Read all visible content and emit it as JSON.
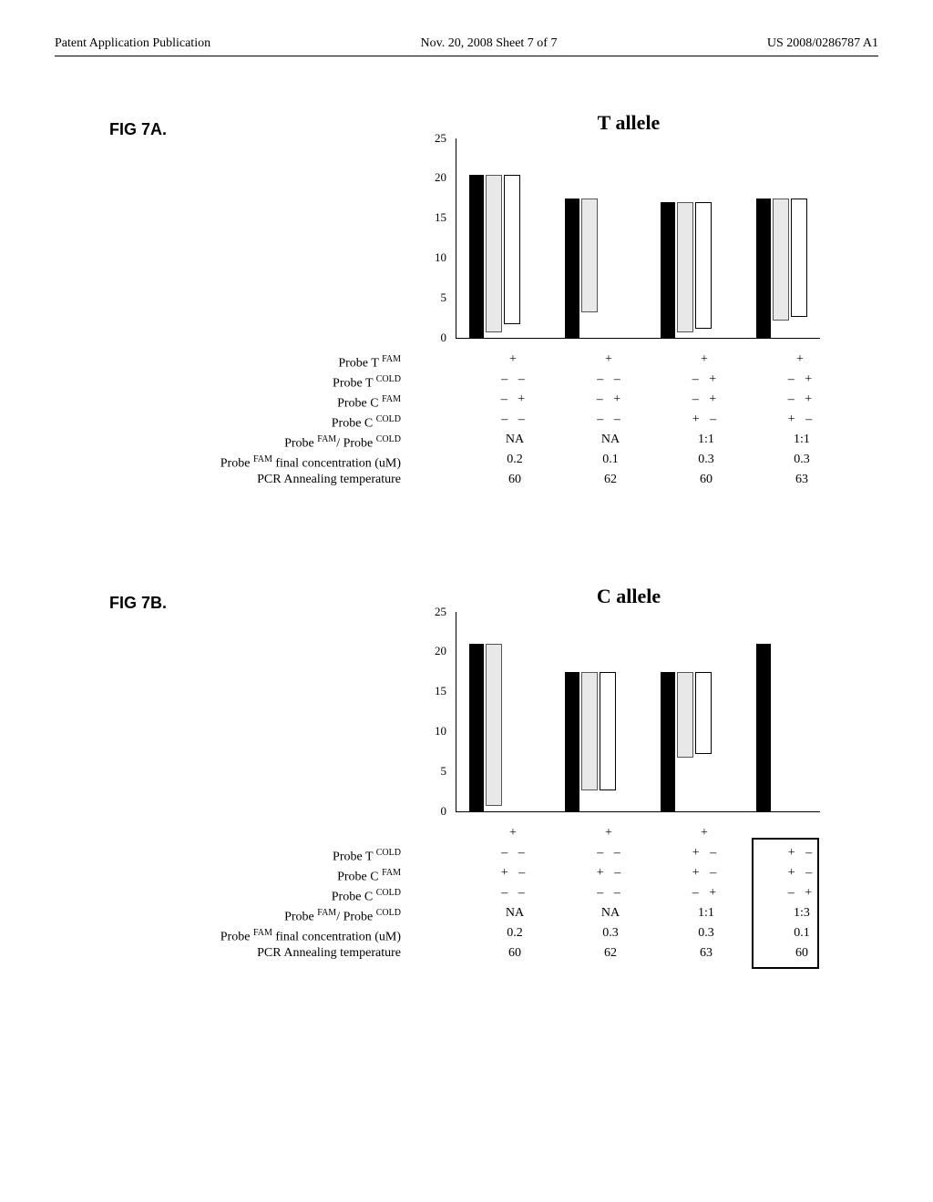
{
  "header": {
    "left": "Patent Application Publication",
    "center": "Nov. 20, 2008  Sheet 7 of 7",
    "right": "US 2008/0286787 A1"
  },
  "figA": {
    "label": "FIG 7A.",
    "title": "T allele",
    "ymax": 25,
    "ytick_step": 5,
    "groups": [
      {
        "a": 20.5,
        "b": 19.5,
        "c": 18.5
      },
      {
        "a": 17.5,
        "b": 14.0,
        "c": 0
      },
      {
        "a": 17.0,
        "b": 16.0,
        "c": 15.5
      },
      {
        "a": 17.5,
        "b": 15.0,
        "c": 14.5
      }
    ],
    "row_labels": [
      "Probe T <sup>FAM</sup>",
      "Probe T <sup>COLD</sup>",
      "Probe C <sup>FAM</sup>",
      "Probe C <sup>COLD</sup>",
      "Probe <sup>FAM</sup>/ Probe <sup>COLD</sup>",
      "Probe <sup>FAM</sup> final concentration (uM)",
      "PCR Annealing temperature"
    ],
    "table": [
      [
        "+",
        "+",
        "+",
        "+"
      ],
      [
        "– –",
        "– –",
        "– +",
        "– +"
      ],
      [
        "– +",
        "– +",
        "– +",
        "– +"
      ],
      [
        "– –",
        "– –",
        "+ –",
        "+ –"
      ],
      [
        "NA",
        "NA",
        "1:1",
        "1:1"
      ],
      [
        "0.2",
        "0.1",
        "0.3",
        "0.3"
      ],
      [
        "60",
        "62",
        "60",
        "63"
      ]
    ]
  },
  "figB": {
    "label": "FIG 7B.",
    "title": "C allele",
    "ymax": 25,
    "ytick_step": 5,
    "groups": [
      {
        "a": 21.0,
        "b": 20.0,
        "c": 0
      },
      {
        "a": 17.5,
        "b": 14.5,
        "c": 14.5
      },
      {
        "a": 17.5,
        "b": 10.5,
        "c": 10.0
      },
      {
        "a": 21.0,
        "b": 0,
        "c": 0
      }
    ],
    "row_labels": [
      "Probe T <sup>COLD</sup>",
      "Probe T <sup>COLD</sup>",
      "Probe C <sup>FAM</sup>",
      "Probe C <sup>COLD</sup>",
      "Probe <sup>FAM</sup>/ Probe <sup>COLD</sup>",
      "Probe <sup>FAM</sup> final concentration (uM)",
      "PCR Annealing temperature"
    ],
    "row_labels_b": [
      "Probe T <sup>COLD</sup>",
      "Probe C <sup>FAM</sup>",
      "Probe C <sup>COLD</sup>",
      "Probe <sup>FAM</sup>/ Probe <sup>COLD</sup>",
      "Probe <sup>FAM</sup> final concentration (uM)",
      "PCR Annealing temperature"
    ],
    "table": [
      [
        "+",
        "+",
        "+",
        ""
      ],
      [
        "– –",
        "– –",
        "+ –",
        "+ –"
      ],
      [
        "+ –",
        "+ –",
        "+ –",
        "+ –"
      ],
      [
        "– –",
        "– –",
        "– +",
        "– +"
      ],
      [
        "NA",
        "NA",
        "1:1",
        "1:3"
      ],
      [
        "0.2",
        "0.3",
        "0.3",
        "0.1"
      ],
      [
        "60",
        "62",
        "63",
        "60"
      ]
    ]
  },
  "colors": {
    "bar_a": "#000000",
    "bar_b": "#e8e8e8",
    "bar_c": "#ffffff",
    "border": "#000000",
    "bg": "#ffffff"
  }
}
